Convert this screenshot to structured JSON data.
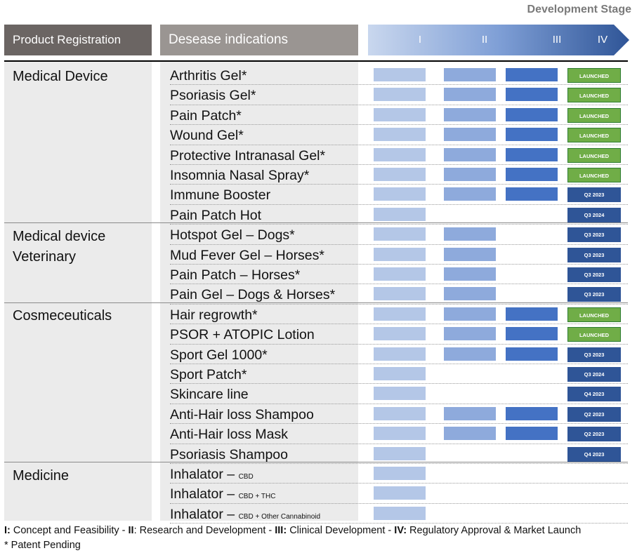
{
  "stage_title": "Development Stage",
  "headers": {
    "product_registration": "Product Registration",
    "disease_indications": "Desease indications",
    "phases": [
      "I",
      "II",
      "III",
      "IV"
    ]
  },
  "colors": {
    "phase1": "#b4c7e7",
    "phase2": "#8eaadc",
    "phase3": "#4472c4",
    "launched_fill": "#70ad47",
    "launched_border": "#2e7d32",
    "planned_fill": "#2f5597"
  },
  "categories": [
    {
      "label": "Medical Device"
    },
    {
      "label": "Medical device Veterinary"
    },
    {
      "label": "Cosmeceuticals"
    },
    {
      "label": "Medicine"
    }
  ],
  "rows": [
    {
      "name": "Arthritis Gel*",
      "phase": 3,
      "status": "LAUNCHED",
      "launched": true
    },
    {
      "name": "Psoriasis Gel*",
      "phase": 3,
      "status": "LAUNCHED",
      "launched": true
    },
    {
      "name": "Pain Patch*",
      "phase": 3,
      "status": "LAUNCHED",
      "launched": true
    },
    {
      "name": "Wound Gel*",
      "phase": 3,
      "status": "LAUNCHED",
      "launched": true
    },
    {
      "name": "Protective Intranasal Gel*",
      "phase": 3,
      "status": "LAUNCHED",
      "launched": true
    },
    {
      "name": "Insomnia Nasal Spray*",
      "phase": 3,
      "status": "LAUNCHED",
      "launched": true
    },
    {
      "name": "Immune Booster",
      "phase": 3,
      "status": "Q2 2023",
      "launched": false
    },
    {
      "name": "Pain Patch Hot",
      "phase": 1,
      "status": "Q3 2024",
      "launched": false
    },
    {
      "name": "Hotspot Gel – Dogs*",
      "phase": 2,
      "status": "Q3 2023",
      "launched": false
    },
    {
      "name": "Mud Fever Gel – Horses*",
      "phase": 2,
      "status": "Q3 2023",
      "launched": false
    },
    {
      "name": "Pain Patch – Horses*",
      "phase": 2,
      "status": "Q3 2023",
      "launched": false
    },
    {
      "name": "Pain Gel – Dogs & Horses*",
      "phase": 2,
      "status": "Q3 2023",
      "launched": false
    },
    {
      "name": "Hair regrowth*",
      "phase": 3,
      "status": "LAUNCHED",
      "launched": true
    },
    {
      "name": "PSOR + ATOPIC Lotion",
      "phase": 3,
      "status": "LAUNCHED",
      "launched": true
    },
    {
      "name": "Sport Gel 1000*",
      "phase": 3,
      "status": "Q3 2023",
      "launched": false
    },
    {
      "name": "Sport Patch*",
      "phase": 1,
      "status": "Q3 2024",
      "launched": false
    },
    {
      "name": "Skincare line",
      "phase": 1,
      "status": "Q4 2023",
      "launched": false
    },
    {
      "name": "Anti-Hair loss Shampoo",
      "phase": 3,
      "status": "Q2 2023",
      "launched": false
    },
    {
      "name": "Anti-Hair loss Mask",
      "phase": 3,
      "status": "Q2 2023",
      "launched": false
    },
    {
      "name": "Psoriasis Shampoo",
      "phase": 1,
      "status": "Q4 2023",
      "launched": false
    },
    {
      "name": "Inhalator – ",
      "suffix": "CBD",
      "phase": 1,
      "status": "",
      "launched": false
    },
    {
      "name": "Inhalator – ",
      "suffix": "CBD + THC",
      "phase": 1,
      "status": "",
      "launched": false
    },
    {
      "name": "Inhalator – ",
      "suffix": "CBD + Other Cannabinoid",
      "phase": 1,
      "status": "",
      "launched": false
    }
  ],
  "legend": {
    "k1": "I:",
    "t1": " Concept and Feasibility - ",
    "k2": "II",
    "t2": ": Research and Development - ",
    "k3": "III:",
    "t3": " Clinical Development - ",
    "k4": "IV:",
    "t4": " Regulatory Approval & Market Launch"
  },
  "note": "* Patent Pending"
}
